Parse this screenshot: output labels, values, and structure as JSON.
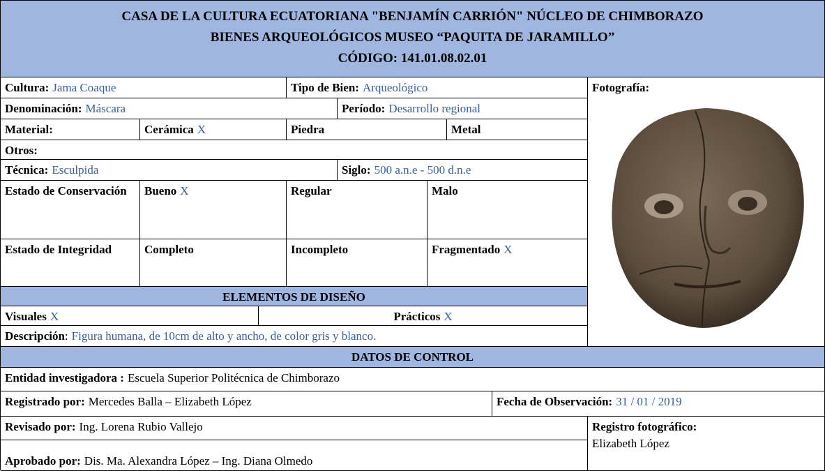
{
  "header": {
    "lines": [
      "CASA DE LA CULTURA ECUATORIANA \"BENJAMÍN CARRIÓN\" NÚCLEO DE CHIMBORAZO",
      "BIENES ARQUEOLÓGICOS MUSEO “PAQUITA DE JARAMILLO”",
      "CÓDIGO: 141.01.08.02.01"
    ]
  },
  "photo": {
    "label": "Fotografía:"
  },
  "rows": [
    [
      {
        "label": "Cultura:",
        "value": "Jama Coaque"
      },
      {
        "label": "Tipo de Bien:",
        "value": "Arqueológico"
      }
    ],
    [
      {
        "label": "Denominación:",
        "value": "Máscara"
      },
      {
        "label": "Período:",
        "value": "Desarrollo regional"
      }
    ],
    [
      {
        "label": "Material:"
      },
      {
        "label": "Cerámica",
        "value": "X"
      },
      {
        "label": "Piedra"
      },
      {
        "label": "Metal"
      }
    ],
    [
      {
        "label": "Otros:"
      }
    ],
    [
      {
        "label": "Técnica:",
        "value": "Esculpida"
      },
      {
        "label": "Siglo:",
        "value": "500 a.n.e - 500 d.n.e"
      }
    ],
    [
      {
        "label": "Estado de Conservación"
      },
      {
        "label": "Bueno",
        "value": "X"
      },
      {
        "label": "Regular"
      },
      {
        "label": "Malo"
      }
    ],
    [
      {
        "label": "Estado de Integridad"
      },
      {
        "label": "Completo"
      },
      {
        "label": "Incompleto"
      },
      {
        "label": "Fragmentado",
        "value": "X"
      }
    ]
  ],
  "design": {
    "title": "ELEMENTOS DE DISEÑO",
    "items": [
      {
        "label": "Visuales",
        "value": "X"
      },
      {
        "label": "Prácticos",
        "value": "X"
      }
    ],
    "description": {
      "label": "Descripción",
      "separator": ":",
      "value": "Figura humana, de 10cm de alto y ancho, de color gris y blanco."
    }
  },
  "control": {
    "title": "DATOS DE CONTROL",
    "entity": {
      "label": "Entidad investigadora :",
      "value": "Escuela Superior Politécnica de Chimborazo"
    },
    "registered": {
      "label": "Registrado por:",
      "value": "Mercedes Balla – Elizabeth López"
    },
    "date": {
      "label": "Fecha de Observación:",
      "value": "31 / 01 / 2019"
    },
    "reviewed": {
      "label": "Revisado por:",
      "value": "Ing. Lorena Rubio Vallejo"
    },
    "photo_record": {
      "label": "Registro fotográfico:",
      "value": "Elizabeth López"
    },
    "approved": {
      "label": "Aprobado por:",
      "value": "Dis. Ma. Alexandra López – Ing. Diana Olmedo"
    }
  }
}
